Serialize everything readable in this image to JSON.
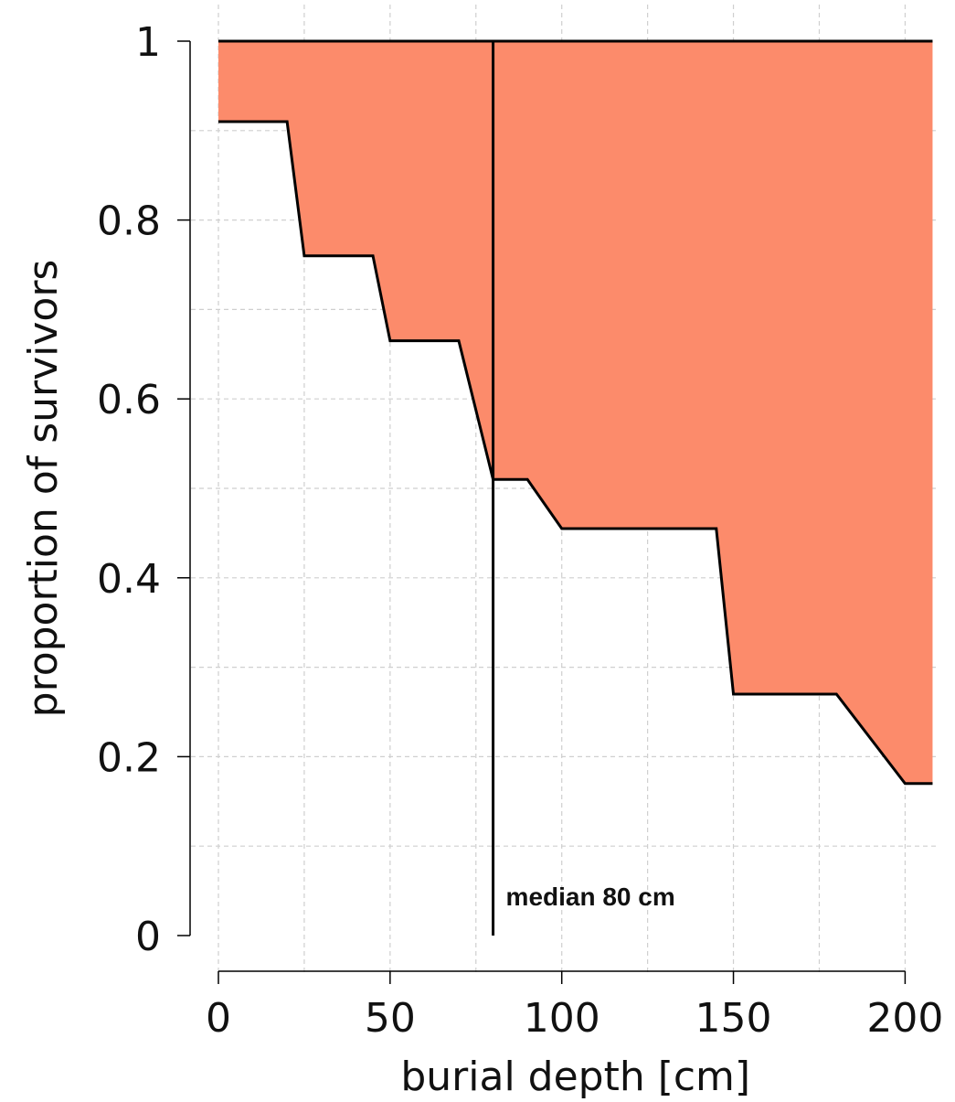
{
  "chart_data": {
    "type": "area",
    "title": "",
    "xlabel": "burial depth [cm]",
    "ylabel": "proportion of survivors",
    "xlim": [
      0,
      208
    ],
    "ylim": [
      0,
      1
    ],
    "x_ticks": [
      0,
      50,
      100,
      150,
      200
    ],
    "y_ticks": [
      0,
      0.2,
      0.4,
      0.6,
      0.8,
      1
    ],
    "x_tick_labels": [
      "0",
      "50",
      "100",
      "150",
      "200"
    ],
    "y_tick_labels": [
      "0",
      "0.2",
      "0.4",
      "0.6",
      "0.8",
      "1"
    ],
    "x_grid": [
      0,
      25,
      50,
      75,
      100,
      125,
      150,
      175,
      200
    ],
    "y_grid": [
      0.1,
      0.2,
      0.3,
      0.4,
      0.5,
      0.6,
      0.7,
      0.8,
      0.9
    ],
    "grid": true,
    "upper_bound": 1,
    "survival_curve": {
      "x": [
        0,
        20,
        25,
        45,
        50,
        70,
        80,
        90,
        100,
        145,
        150,
        180,
        200,
        208
      ],
      "y": [
        0.91,
        0.91,
        0.76,
        0.76,
        0.665,
        0.665,
        0.51,
        0.51,
        0.455,
        0.455,
        0.27,
        0.27,
        0.17,
        0.17
      ]
    },
    "fill_color": "#fc8b6b",
    "median": {
      "x": 80,
      "label": "median 80 cm"
    }
  }
}
